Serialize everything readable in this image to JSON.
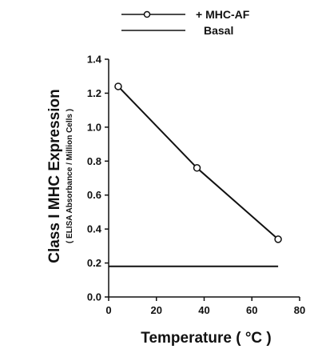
{
  "chart_data": {
    "type": "line",
    "title": "",
    "xlabel": "Temperature ( °C )",
    "ylabel": "Class I MHC Expression",
    "ylabel_sub": "( ELISA Absorbance / Million Cells )",
    "xlim": [
      0,
      80
    ],
    "ylim": [
      0.0,
      1.4
    ],
    "x_ticks": [
      "0",
      "20",
      "40",
      "60",
      "80"
    ],
    "y_ticks": [
      "0.0",
      "0.2",
      "0.4",
      "0.6",
      "0.8",
      "1.0",
      "1.2",
      "1.4"
    ],
    "grid": false,
    "legend_position": "top",
    "series": [
      {
        "name": "+ MHC-AF",
        "style": "line-with-open-circles",
        "color": "#111111",
        "x": [
          4,
          37,
          71
        ],
        "y": [
          1.24,
          0.76,
          0.34
        ]
      },
      {
        "name": "Basal",
        "style": "line",
        "color": "#111111",
        "x": [
          0,
          71
        ],
        "y": [
          0.18,
          0.18
        ]
      }
    ]
  }
}
